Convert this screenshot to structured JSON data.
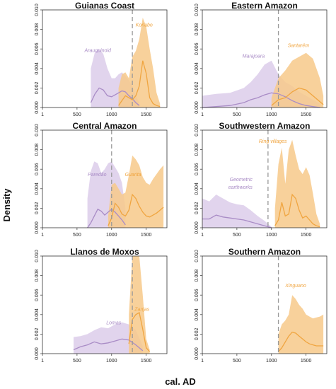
{
  "figure": {
    "ylabel": "Density",
    "xlabel": "cal. AD"
  },
  "colors": {
    "purple": "#a98cc6",
    "orange": "#f0a540",
    "purple_fill": "#dccdea",
    "orange_fill": "#f7c98a",
    "divider": "#999999"
  },
  "chart_data": [
    {
      "type": "area",
      "title": "Guianas Coast",
      "xlim": [
        0,
        1800
      ],
      "ylim": [
        0,
        0.01
      ],
      "xticks": [
        1,
        500,
        1000,
        1500
      ],
      "yticks": [
        "0.000",
        "0.002",
        "0.004",
        "0.006",
        "0.008",
        "0.010"
      ],
      "divider_x": 1300,
      "series": [
        {
          "name": "Arauquinoid",
          "color": "#a98cc6",
          "x": [
            700,
            760,
            820,
            880,
            940,
            1000,
            1050,
            1100,
            1150,
            1200,
            1250,
            1300,
            1350,
            1400
          ],
          "mean": [
            0.0005,
            0.0014,
            0.002,
            0.0018,
            0.0012,
            0.0011,
            0.0013,
            0.0015,
            0.0017,
            0.0016,
            0.0012,
            0.0009,
            0.0005,
            0.0002
          ],
          "upper": [
            0.004,
            0.0057,
            0.006,
            0.0055,
            0.004,
            0.003,
            0.003,
            0.0034,
            0.0036,
            0.0032,
            0.0028,
            0.0022,
            0.0012,
            0.0005
          ],
          "lower": [
            0,
            0,
            0,
            0,
            0,
            0,
            0,
            0,
            0,
            0,
            0,
            0,
            0,
            0
          ]
        },
        {
          "name": "Koriabo",
          "color": "#f0a540",
          "x": [
            1100,
            1150,
            1200,
            1250,
            1300,
            1350,
            1400,
            1450,
            1500,
            1550,
            1600,
            1650,
            1700
          ],
          "mean": [
            0.0002,
            0.0007,
            0.0012,
            0.001,
            0.0008,
            0.0012,
            0.0022,
            0.0048,
            0.0035,
            0.001,
            0.0004,
            0.0002,
            0.0001
          ],
          "upper": [
            0.002,
            0.0034,
            0.0036,
            0.003,
            0.0052,
            0.0058,
            0.007,
            0.0092,
            0.0083,
            0.006,
            0.004,
            0.0015,
            0.0004
          ],
          "lower": [
            0,
            0,
            0,
            0,
            0,
            0,
            0,
            0,
            0,
            0,
            0,
            0,
            0
          ]
        }
      ],
      "annotations": [
        {
          "text": "Arauquinoid",
          "x": 800,
          "y": 0.0057,
          "color": "#a98cc6"
        },
        {
          "text": "Koriabo",
          "x": 1470,
          "y": 0.0083,
          "color": "#f0a540"
        }
      ]
    },
    {
      "type": "area",
      "title": "Eastern Amazon",
      "xlim": [
        0,
        1800
      ],
      "ylim": [
        0,
        0.01
      ],
      "xticks": [
        1,
        500,
        1000,
        1500
      ],
      "yticks": [
        "0.000",
        "0.002",
        "0.004",
        "0.006",
        "0.008",
        "0.010"
      ],
      "divider_x": 1100,
      "series": [
        {
          "name": "Marajoara",
          "color": "#a98cc6",
          "x": [
            1,
            200,
            400,
            600,
            700,
            800,
            900,
            1000,
            1100,
            1200,
            1300,
            1400,
            1500,
            1600,
            1700
          ],
          "mean": [
            0.0,
            0.0001,
            0.0002,
            0.0005,
            0.0008,
            0.001,
            0.0013,
            0.0015,
            0.0014,
            0.0011,
            0.0007,
            0.0004,
            0.0002,
            0.0001,
            0.0
          ],
          "upper": [
            0.0012,
            0.0014,
            0.0015,
            0.002,
            0.0026,
            0.0034,
            0.0044,
            0.0048,
            0.0034,
            0.0026,
            0.0022,
            0.0016,
            0.0012,
            0.0008,
            0.0004
          ],
          "lower": [
            0,
            0,
            0,
            0,
            0,
            0,
            0,
            0,
            0,
            0,
            0,
            0,
            0,
            0,
            0
          ]
        },
        {
          "name": "Santarém",
          "color": "#f0a540",
          "x": [
            1000,
            1100,
            1200,
            1300,
            1400,
            1500,
            1600,
            1700,
            1750
          ],
          "mean": [
            0.0002,
            0.0008,
            0.001,
            0.0016,
            0.002,
            0.0018,
            0.0012,
            0.0006,
            0.0003
          ],
          "upper": [
            0.001,
            0.003,
            0.0038,
            0.0048,
            0.0052,
            0.0056,
            0.005,
            0.003,
            0.0012
          ],
          "lower": [
            0,
            0,
            0,
            0,
            0,
            0,
            0,
            0,
            0
          ]
        }
      ],
      "annotations": [
        {
          "text": "Marajoara",
          "x": 740,
          "y": 0.0051,
          "color": "#a98cc6"
        },
        {
          "text": "Santarém",
          "x": 1390,
          "y": 0.0062,
          "color": "#f0a540"
        }
      ]
    },
    {
      "type": "area",
      "title": "Central Amazon",
      "xlim": [
        0,
        1800
      ],
      "ylim": [
        0,
        0.01
      ],
      "xticks": [
        1,
        500,
        1000,
        1500
      ],
      "yticks": [
        "0.000",
        "0.002",
        "0.004",
        "0.006",
        "0.008",
        "0.010"
      ],
      "divider_x": 1000,
      "series": [
        {
          "name": "Paredão",
          "color": "#a98cc6",
          "x": [
            650,
            700,
            750,
            800,
            850,
            900,
            950,
            1000,
            1050,
            1100,
            1150,
            1200
          ],
          "mean": [
            0.0,
            0.0005,
            0.0012,
            0.0019,
            0.0017,
            0.0013,
            0.0016,
            0.0019,
            0.0016,
            0.0012,
            0.0008,
            0.0003
          ],
          "upper": [
            0.003,
            0.0058,
            0.0068,
            0.0066,
            0.0056,
            0.006,
            0.0066,
            0.0068,
            0.0062,
            0.0056,
            0.0046,
            0.002
          ],
          "lower": [
            0,
            0,
            0,
            0,
            0,
            0,
            0,
            0,
            0,
            0,
            0,
            0
          ]
        },
        {
          "name": "Guarita",
          "color": "#f0a540",
          "x": [
            950,
            1000,
            1050,
            1100,
            1150,
            1200,
            1250,
            1300,
            1350,
            1400,
            1450,
            1500,
            1550,
            1600,
            1650,
            1700,
            1750
          ],
          "mean": [
            0.0002,
            0.001,
            0.0025,
            0.0021,
            0.0014,
            0.0012,
            0.0018,
            0.0034,
            0.003,
            0.0022,
            0.0016,
            0.0012,
            0.0011,
            0.0013,
            0.0015,
            0.0018,
            0.0021
          ],
          "upper": [
            0.0012,
            0.0044,
            0.0046,
            0.004,
            0.0034,
            0.0036,
            0.0054,
            0.0074,
            0.007,
            0.0064,
            0.0052,
            0.0046,
            0.0044,
            0.005,
            0.0055,
            0.006,
            0.0064
          ],
          "lower": [
            0,
            0,
            0,
            0,
            0,
            0,
            0,
            0,
            0,
            0,
            0,
            0,
            0,
            0,
            0,
            0,
            0
          ]
        }
      ],
      "annotations": [
        {
          "text": "Paredão",
          "x": 790,
          "y": 0.0053,
          "color": "#a98cc6"
        },
        {
          "text": "Guarita",
          "x": 1310,
          "y": 0.0053,
          "color": "#f0a540"
        }
      ]
    },
    {
      "type": "area",
      "title": "Southwestern Amazon",
      "xlim": [
        0,
        1800
      ],
      "ylim": [
        0,
        0.01
      ],
      "xticks": [
        1,
        500,
        1000,
        1500
      ],
      "yticks": [
        "0.000",
        "0.002",
        "0.004",
        "0.006",
        "0.008",
        "0.010"
      ],
      "divider_x": 950,
      "series": [
        {
          "name": "Geometric earthworks",
          "color": "#a98cc6",
          "x": [
            1,
            100,
            200,
            300,
            400,
            500,
            600,
            700,
            800,
            900,
            1000
          ],
          "mean": [
            0.0009,
            0.0009,
            0.0013,
            0.0011,
            0.001,
            0.0009,
            0.0008,
            0.0006,
            0.0004,
            0.0002,
            0.0
          ],
          "upper": [
            0.003,
            0.0027,
            0.0034,
            0.003,
            0.0026,
            0.0024,
            0.0023,
            0.0018,
            0.0012,
            0.0007,
            0.0001
          ],
          "lower": [
            0,
            0,
            0,
            0,
            0,
            0,
            0,
            0,
            0,
            0,
            0
          ]
        },
        {
          "name": "Ring villages",
          "color": "#f0a540",
          "x": [
            1050,
            1100,
            1150,
            1200,
            1250,
            1300,
            1350,
            1400,
            1450,
            1500,
            1550,
            1600,
            1650,
            1700
          ],
          "mean": [
            0.0002,
            0.0008,
            0.0026,
            0.0012,
            0.0014,
            0.0034,
            0.003,
            0.0018,
            0.001,
            0.0012,
            0.0008,
            0.0004,
            0.0002,
            0.0001
          ],
          "upper": [
            0.002,
            0.0065,
            0.0082,
            0.0045,
            0.008,
            0.009,
            0.0074,
            0.006,
            0.0055,
            0.0062,
            0.0054,
            0.0035,
            0.0014,
            0.0004
          ],
          "lower": [
            0,
            0,
            0,
            0,
            0,
            0,
            0,
            0,
            0,
            0,
            0,
            0,
            0,
            0
          ]
        }
      ],
      "annotations": [
        {
          "text": "Ring villages",
          "x": 1020,
          "y": 0.0087,
          "color": "#f0a540"
        },
        {
          "text": "Geometric",
          "x": 560,
          "y": 0.0048,
          "color": "#a98cc6"
        },
        {
          "text": "earthworks",
          "x": 550,
          "y": 0.004,
          "color": "#a98cc6"
        }
      ]
    },
    {
      "type": "area",
      "title": "Llanos de Moxos",
      "xlim": [
        0,
        1800
      ],
      "ylim": [
        0,
        0.01
      ],
      "xticks": [
        1,
        500,
        1000,
        1500
      ],
      "yticks": [
        "0.000",
        "0.002",
        "0.004",
        "0.006",
        "0.008",
        "0.010"
      ],
      "divider_x": 1300,
      "series": [
        {
          "name": "Lomas",
          "color": "#a98cc6",
          "x": [
            450,
            550,
            650,
            750,
            850,
            950,
            1050,
            1150,
            1250,
            1350,
            1450
          ],
          "mean": [
            0.0004,
            0.0007,
            0.0009,
            0.0012,
            0.001,
            0.0011,
            0.0013,
            0.0015,
            0.0014,
            0.0009,
            0.0003
          ],
          "upper": [
            0.0017,
            0.0018,
            0.002,
            0.0024,
            0.0027,
            0.0026,
            0.003,
            0.0032,
            0.003,
            0.0024,
            0.0008
          ],
          "lower": [
            0,
            0,
            0,
            0,
            0,
            0,
            0,
            0,
            0,
            0,
            0
          ]
        },
        {
          "name": "Zanjas",
          "color": "#f0a540",
          "x": [
            1250,
            1300,
            1350,
            1400,
            1450,
            1500,
            1550
          ],
          "mean": [
            0.001,
            0.0035,
            0.004,
            0.0042,
            0.0025,
            0.0006,
            0.0002
          ],
          "upper": [
            0.004,
            0.01,
            0.01,
            0.01,
            0.006,
            0.0015,
            0.0004
          ],
          "lower": [
            0,
            0,
            0,
            0,
            0,
            0,
            0
          ]
        }
      ],
      "annotations": [
        {
          "text": "Lomas",
          "x": 1030,
          "y": 0.003,
          "color": "#a98cc6"
        },
        {
          "text": "Zanjas",
          "x": 1440,
          "y": 0.0044,
          "color": "#f0a540"
        }
      ]
    },
    {
      "type": "area",
      "title": "Southern Amazon",
      "xlim": [
        0,
        1800
      ],
      "ylim": [
        0,
        0.01
      ],
      "xticks": [
        1,
        500,
        1000,
        1500
      ],
      "yticks": [
        "0.000",
        "0.002",
        "0.004",
        "0.006",
        "0.008",
        "0.010"
      ],
      "divider_x": 1100,
      "series": [
        {
          "name": "Xinguano",
          "color": "#f0a540",
          "x": [
            1100,
            1150,
            1200,
            1250,
            1300,
            1350,
            1400,
            1450,
            1500,
            1550,
            1600,
            1650,
            1700,
            1750
          ],
          "mean": [
            0.0002,
            0.0006,
            0.0012,
            0.0018,
            0.0022,
            0.0021,
            0.0018,
            0.0015,
            0.0012,
            0.001,
            0.0009,
            0.0008,
            0.0008,
            0.0008
          ],
          "upper": [
            0.002,
            0.003,
            0.0034,
            0.004,
            0.006,
            0.0056,
            0.005,
            0.0046,
            0.004,
            0.0038,
            0.0036,
            0.0037,
            0.0038,
            0.004
          ],
          "lower": [
            0,
            0,
            0,
            0,
            0,
            0,
            0,
            0,
            0,
            0,
            0,
            0,
            0,
            0
          ]
        }
      ],
      "annotations": [
        {
          "text": "Xinguano",
          "x": 1350,
          "y": 0.0068,
          "color": "#f0a540"
        }
      ]
    }
  ]
}
